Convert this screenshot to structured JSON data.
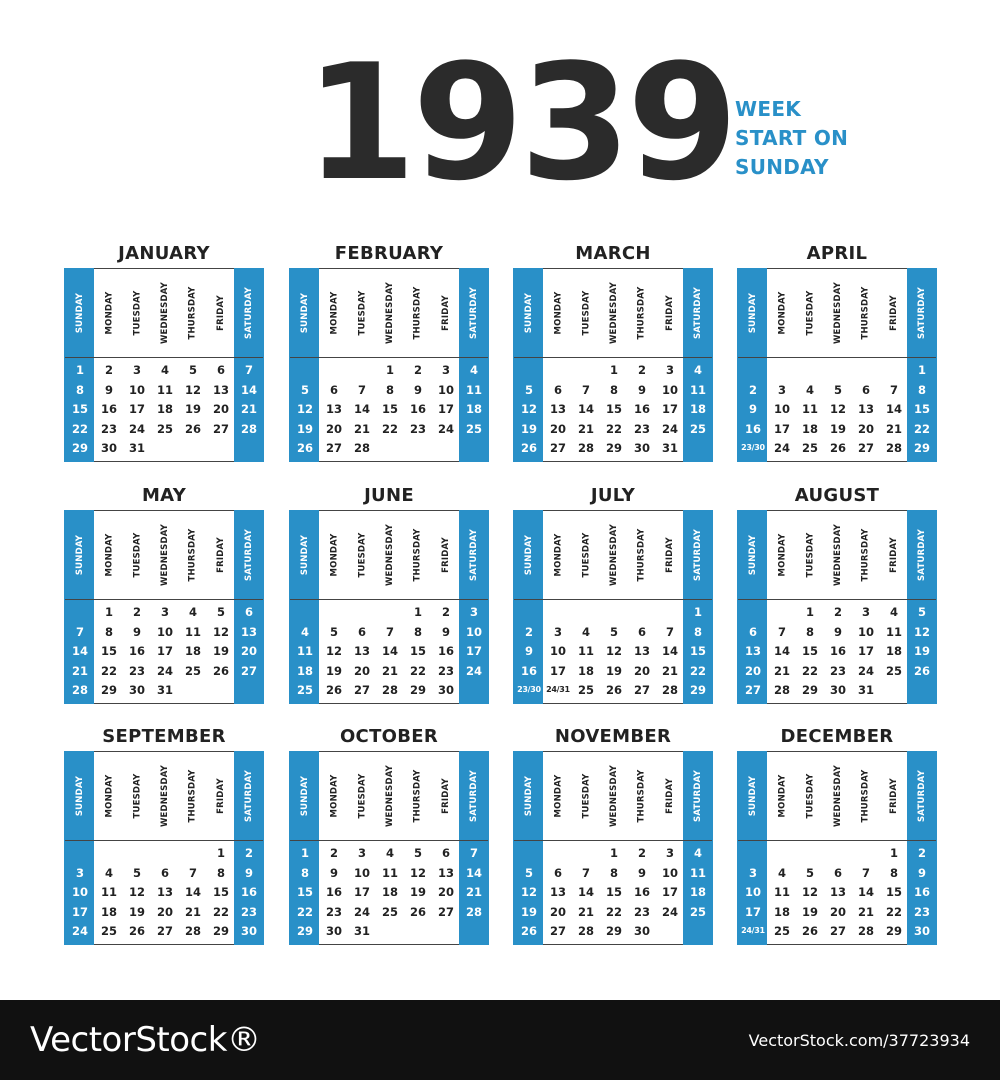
{
  "year": "1939",
  "tagline": [
    "WEEK",
    "START ON",
    "SUNDAY"
  ],
  "colors": {
    "accent": "#2990c8",
    "dark": "#2b2b2b",
    "footer": "#111111"
  },
  "weekdays": [
    "SUNDAY",
    "MONDAY",
    "TUESDAY",
    "WEDNESDAY",
    "THURSDAY",
    "FRIDAY",
    "SATURDAY"
  ],
  "months": [
    {
      "name": "JANUARY",
      "weeks": [
        [
          "1",
          "2",
          "3",
          "4",
          "5",
          "6",
          "7"
        ],
        [
          "8",
          "9",
          "10",
          "11",
          "12",
          "13",
          "14"
        ],
        [
          "15",
          "16",
          "17",
          "18",
          "19",
          "20",
          "21"
        ],
        [
          "22",
          "23",
          "24",
          "25",
          "26",
          "27",
          "28"
        ],
        [
          "29",
          "30",
          "31",
          "",
          "",
          "",
          ""
        ]
      ]
    },
    {
      "name": "FEBRUARY",
      "weeks": [
        [
          "",
          "",
          "",
          "1",
          "2",
          "3",
          "4"
        ],
        [
          "5",
          "6",
          "7",
          "8",
          "9",
          "10",
          "11"
        ],
        [
          "12",
          "13",
          "14",
          "15",
          "16",
          "17",
          "18"
        ],
        [
          "19",
          "20",
          "21",
          "22",
          "23",
          "24",
          "25"
        ],
        [
          "26",
          "27",
          "28",
          "",
          "",
          "",
          ""
        ]
      ]
    },
    {
      "name": "MARCH",
      "weeks": [
        [
          "",
          "",
          "",
          "1",
          "2",
          "3",
          "4"
        ],
        [
          "5",
          "6",
          "7",
          "8",
          "9",
          "10",
          "11"
        ],
        [
          "12",
          "13",
          "14",
          "15",
          "16",
          "17",
          "18"
        ],
        [
          "19",
          "20",
          "21",
          "22",
          "23",
          "24",
          "25"
        ],
        [
          "26",
          "27",
          "28",
          "29",
          "30",
          "31",
          ""
        ]
      ]
    },
    {
      "name": "APRIL",
      "weeks": [
        [
          "",
          "",
          "",
          "",
          "",
          "",
          "1"
        ],
        [
          "2",
          "3",
          "4",
          "5",
          "6",
          "7",
          "8"
        ],
        [
          "9",
          "10",
          "11",
          "12",
          "13",
          "14",
          "15"
        ],
        [
          "16",
          "17",
          "18",
          "19",
          "20",
          "21",
          "22"
        ],
        [
          "23/30",
          "24",
          "25",
          "26",
          "27",
          "28",
          "29"
        ]
      ]
    },
    {
      "name": "MAY",
      "weeks": [
        [
          "",
          "1",
          "2",
          "3",
          "4",
          "5",
          "6"
        ],
        [
          "7",
          "8",
          "9",
          "10",
          "11",
          "12",
          "13"
        ],
        [
          "14",
          "15",
          "16",
          "17",
          "18",
          "19",
          "20"
        ],
        [
          "21",
          "22",
          "23",
          "24",
          "25",
          "26",
          "27"
        ],
        [
          "28",
          "29",
          "30",
          "31",
          "",
          "",
          ""
        ]
      ]
    },
    {
      "name": "JUNE",
      "weeks": [
        [
          "",
          "",
          "",
          "",
          "1",
          "2",
          "3"
        ],
        [
          "4",
          "5",
          "6",
          "7",
          "8",
          "9",
          "10"
        ],
        [
          "11",
          "12",
          "13",
          "14",
          "15",
          "16",
          "17"
        ],
        [
          "18",
          "19",
          "20",
          "21",
          "22",
          "23",
          "24"
        ],
        [
          "25",
          "26",
          "27",
          "28",
          "29",
          "30",
          ""
        ]
      ]
    },
    {
      "name": "JULY",
      "weeks": [
        [
          "",
          "",
          "",
          "",
          "",
          "",
          "1"
        ],
        [
          "2",
          "3",
          "4",
          "5",
          "6",
          "7",
          "8"
        ],
        [
          "9",
          "10",
          "11",
          "12",
          "13",
          "14",
          "15"
        ],
        [
          "16",
          "17",
          "18",
          "19",
          "20",
          "21",
          "22"
        ],
        [
          "23/30",
          "24/31",
          "25",
          "26",
          "27",
          "28",
          "29"
        ]
      ]
    },
    {
      "name": "AUGUST",
      "weeks": [
        [
          "",
          "",
          "1",
          "2",
          "3",
          "4",
          "5"
        ],
        [
          "6",
          "7",
          "8",
          "9",
          "10",
          "11",
          "12"
        ],
        [
          "13",
          "14",
          "15",
          "16",
          "17",
          "18",
          "19"
        ],
        [
          "20",
          "21",
          "22",
          "23",
          "24",
          "25",
          "26"
        ],
        [
          "27",
          "28",
          "29",
          "30",
          "31",
          "",
          ""
        ]
      ]
    },
    {
      "name": "SEPTEMBER",
      "weeks": [
        [
          "",
          "",
          "",
          "",
          "",
          "1",
          "2"
        ],
        [
          "3",
          "4",
          "5",
          "6",
          "7",
          "8",
          "9"
        ],
        [
          "10",
          "11",
          "12",
          "13",
          "14",
          "15",
          "16"
        ],
        [
          "17",
          "18",
          "19",
          "20",
          "21",
          "22",
          "23"
        ],
        [
          "24",
          "25",
          "26",
          "27",
          "28",
          "29",
          "30"
        ]
      ]
    },
    {
      "name": "OCTOBER",
      "weeks": [
        [
          "1",
          "2",
          "3",
          "4",
          "5",
          "6",
          "7"
        ],
        [
          "8",
          "9",
          "10",
          "11",
          "12",
          "13",
          "14"
        ],
        [
          "15",
          "16",
          "17",
          "18",
          "19",
          "20",
          "21"
        ],
        [
          "22",
          "23",
          "24",
          "25",
          "26",
          "27",
          "28"
        ],
        [
          "29",
          "30",
          "31",
          "",
          "",
          "",
          ""
        ]
      ]
    },
    {
      "name": "NOVEMBER",
      "weeks": [
        [
          "",
          "",
          "",
          "1",
          "2",
          "3",
          "4"
        ],
        [
          "5",
          "6",
          "7",
          "8",
          "9",
          "10",
          "11"
        ],
        [
          "12",
          "13",
          "14",
          "15",
          "16",
          "17",
          "18"
        ],
        [
          "19",
          "20",
          "21",
          "22",
          "23",
          "24",
          "25"
        ],
        [
          "26",
          "27",
          "28",
          "29",
          "30",
          "",
          ""
        ]
      ]
    },
    {
      "name": "DECEMBER",
      "weeks": [
        [
          "",
          "",
          "",
          "",
          "",
          "1",
          "2"
        ],
        [
          "3",
          "4",
          "5",
          "6",
          "7",
          "8",
          "9"
        ],
        [
          "10",
          "11",
          "12",
          "13",
          "14",
          "15",
          "16"
        ],
        [
          "17",
          "18",
          "19",
          "20",
          "21",
          "22",
          "23"
        ],
        [
          "24/31",
          "25",
          "26",
          "27",
          "28",
          "29",
          "30"
        ]
      ]
    }
  ],
  "footer": {
    "brand": "VectorStock®",
    "credit": "VectorStock.com/37723934"
  }
}
